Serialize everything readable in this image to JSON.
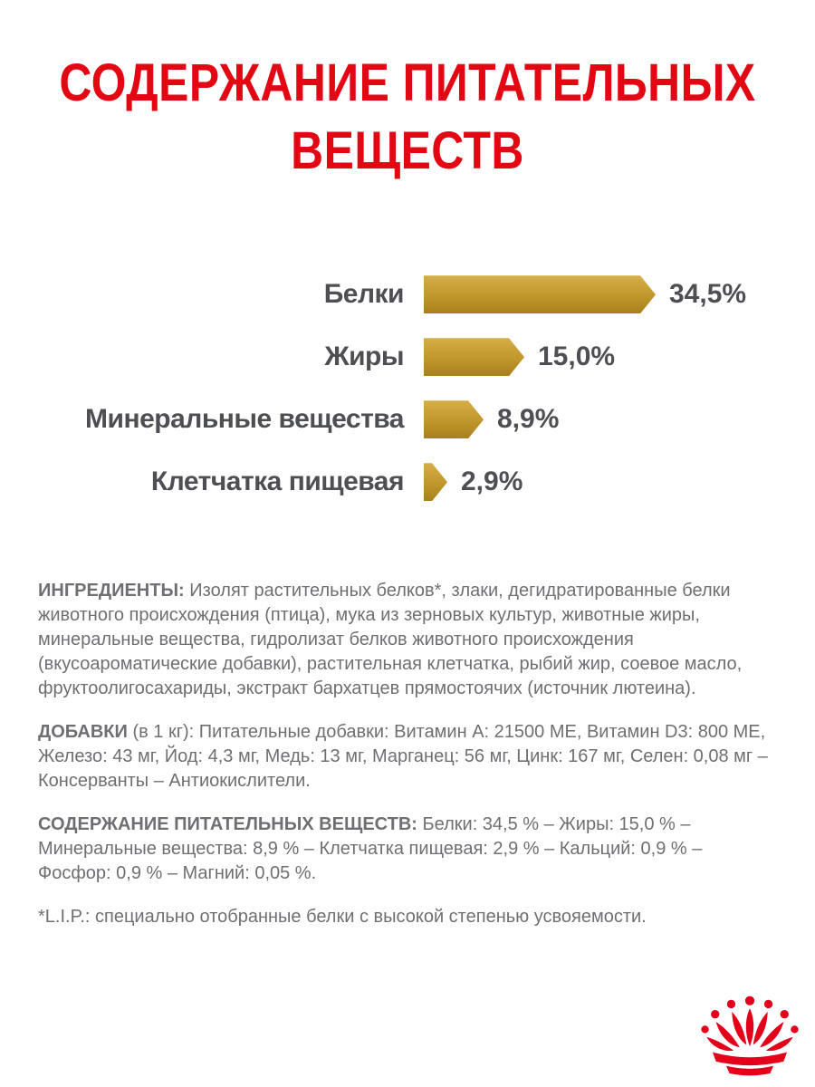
{
  "title": {
    "line1": "СОДЕРЖАНИЕ ПИТАТЕЛЬНЫХ",
    "line2": "ВЕЩЕСТВ"
  },
  "chart_data": {
    "type": "bar",
    "orientation": "horizontal",
    "title": "СОДЕРЖАНИЕ ПИТАТЕЛЬНЫХ ВЕЩЕСТВ",
    "categories": [
      "Белки",
      "Жиры",
      "Минеральные вещества",
      "Клетчатка пищевая"
    ],
    "values": [
      34.5,
      15.0,
      8.9,
      2.9
    ],
    "value_labels": [
      "34,5%",
      "15,0%",
      "8,9%",
      "2,9%"
    ],
    "xlabel": "",
    "ylabel": "",
    "xlim": [
      0,
      36
    ],
    "grid": false,
    "legend": false,
    "bar_color": "#c0972b",
    "bar_color_light": "#d6ae48",
    "bar_color_dark": "#a87f1e"
  },
  "sections": [
    {
      "bold": "ИНГРЕДИЕНТЫ:",
      "text": "Изолят растительных белков*, злаки, дегидратированные белки животного происхождения (птица), мука из зерновых культур, животные жиры, минеральные вещества, гидролизат белков животного происхождения (вкусоароматические добавки), растительная клетчатка, рыбий жир, соевое масло, фруктоолигосахариды, экстракт бархатцев прямостоячих (источник лютеина)."
    },
    {
      "bold": "ДОБАВКИ",
      "text": "(в 1 кг): Питательные добавки: Витамин A: 21500 ME, Витамин D3: 800 ME, Железо: 43 мг, Йод: 4,3 мг, Медь: 13 мг, Марганец: 56 мг, Цинк: 167 мг, Селен: 0,08 мг – Консерванты – Антиокислители."
    },
    {
      "bold": "СОДЕРЖАНИЕ ПИТАТЕЛЬНЫХ ВЕЩЕСТВ:",
      "text": "Белки: 34,5 % – Жиры: 15,0 % – Минеральные вещества: 8,9 % – Клетчатка пищевая: 2,9 % – Кальций: 0,9 % – Фосфор: 0,9 % – Магний: 0,05 %."
    },
    {
      "bold": "",
      "text": "*L.I.P.: специально отобранные белки с высокой степенью усвояемости."
    }
  ],
  "logo": {
    "icon": "royal-canin-crown",
    "color": "#e2001a"
  }
}
